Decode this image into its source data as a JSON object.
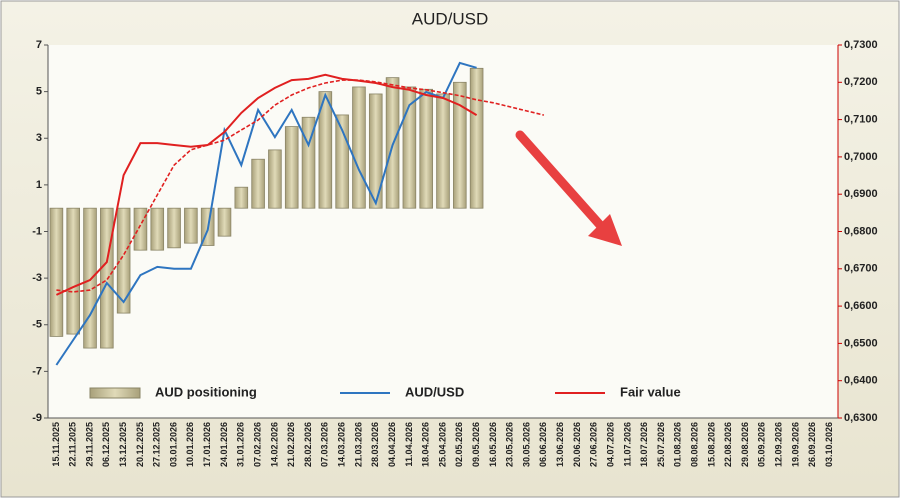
{
  "chart_data": {
    "type": "combo",
    "title": "AUD/USD",
    "categories": [
      "15.11.2025",
      "22.11.2025",
      "29.11.2025",
      "06.12.2025",
      "13.12.2025",
      "20.12.2025",
      "27.12.2025",
      "03.01.2026",
      "10.01.2026",
      "17.01.2026",
      "24.01.2026",
      "31.01.2026",
      "07.02.2026",
      "14.02.2026",
      "21.02.2026",
      "28.02.2026",
      "07.03.2026",
      "14.03.2026",
      "21.03.2026",
      "28.03.2026",
      "04.04.2026",
      "11.04.2026",
      "18.04.2026",
      "25.04.2026",
      "02.05.2026",
      "09.05.2026",
      "16.05.2026",
      "23.05.2026",
      "30.05.2026",
      "06.06.2026",
      "13.06.2026",
      "20.06.2026",
      "27.06.2026",
      "04.07.2026",
      "11.07.2026",
      "18.07.2026",
      "25.07.2026",
      "01.08.2026",
      "08.08.2026",
      "15.08.2026",
      "22.08.2026",
      "29.08.2026",
      "05.09.2026",
      "12.09.2026",
      "19.09.2026",
      "26.09.2026",
      "03.10.2026"
    ],
    "ylim": [
      -9,
      7
    ],
    "yticks": [
      -9,
      -7,
      -5,
      -3,
      -1,
      1,
      3,
      5,
      7
    ],
    "y2lim": [
      0.63,
      0.73
    ],
    "y2ticks": [
      {
        "value": 0.63,
        "label": "0,6300"
      },
      {
        "value": 0.64,
        "label": "0,6400"
      },
      {
        "value": 0.65,
        "label": "0,6500"
      },
      {
        "value": 0.66,
        "label": "0,6600"
      },
      {
        "value": 0.67,
        "label": "0,6700"
      },
      {
        "value": 0.68,
        "label": "0,6800"
      },
      {
        "value": 0.69,
        "label": "0,6900"
      },
      {
        "value": 0.7,
        "label": "0,7000"
      },
      {
        "value": 0.71,
        "label": "0,7100"
      },
      {
        "value": 0.72,
        "label": "0,7200"
      },
      {
        "value": 0.73,
        "label": "0,7300"
      }
    ],
    "series": [
      {
        "name": "AUD positioning",
        "type": "bar",
        "color": "#cbc4a0",
        "values": [
          -5.5,
          -5.4,
          -6.0,
          -6.0,
          -4.5,
          -1.8,
          -1.8,
          -1.7,
          -1.5,
          -1.6,
          -1.2,
          0.9,
          2.1,
          2.5,
          3.5,
          3.9,
          5.0,
          4.0,
          5.2,
          4.9,
          5.6,
          5.2,
          5.1,
          4.9,
          5.4,
          6.0,
          null,
          null,
          null,
          null,
          null,
          null,
          null,
          null,
          null,
          null,
          null,
          null,
          null,
          null,
          null,
          null,
          null,
          null,
          null,
          null,
          null
        ]
      },
      {
        "name": "AUD/USD",
        "type": "line",
        "axis": "y2",
        "color": "#2e75c0",
        "values": [
          0.6442,
          0.6509,
          0.6576,
          0.6662,
          0.6611,
          0.6683,
          0.6705,
          0.67,
          0.67,
          0.6804,
          0.7072,
          0.6978,
          0.7126,
          0.7053,
          0.7126,
          0.7032,
          0.7166,
          0.7072,
          0.6965,
          0.6876,
          0.7032,
          0.7139,
          0.7174,
          0.7158,
          0.7252,
          0.7239,
          null,
          null,
          null,
          null,
          null,
          null,
          null,
          null,
          null,
          null,
          null,
          null,
          null,
          null,
          null,
          null,
          null,
          null,
          null,
          null,
          null
        ]
      },
      {
        "name": "Fair value",
        "type": "line",
        "axis": "y2",
        "color": "#e02020",
        "values": [
          0.663,
          0.6651,
          0.667,
          0.6718,
          0.6951,
          0.7037,
          0.7037,
          0.7032,
          0.7027,
          0.7032,
          0.7067,
          0.7118,
          0.7158,
          0.7185,
          0.7206,
          0.7209,
          0.722,
          0.7209,
          0.7204,
          0.7198,
          0.7187,
          0.718,
          0.7166,
          0.7158,
          0.7139,
          0.7112,
          null,
          null,
          null,
          null,
          null,
          null,
          null,
          null,
          null,
          null,
          null,
          null,
          null,
          null,
          null,
          null,
          null,
          null,
          null,
          null,
          null
        ]
      },
      {
        "type": "line",
        "axis": "y2",
        "color": "#e02020",
        "dashed": true,
        "values": [
          0.6643,
          0.6638,
          0.6643,
          0.667,
          0.6737,
          0.6817,
          0.6898,
          0.6978,
          0.7019,
          0.7032,
          0.7045,
          0.7072,
          0.7099,
          0.7139,
          0.7166,
          0.7185,
          0.7198,
          0.7206,
          0.7206,
          0.7201,
          0.7193,
          0.7185,
          0.718,
          0.7172,
          0.7164,
          0.7153,
          0.7145,
          0.7134,
          0.7123,
          0.7112,
          null,
          null,
          null,
          null,
          null,
          null,
          null,
          null,
          null,
          null,
          null,
          null,
          null,
          null,
          null,
          null,
          null
        ]
      }
    ]
  }
}
